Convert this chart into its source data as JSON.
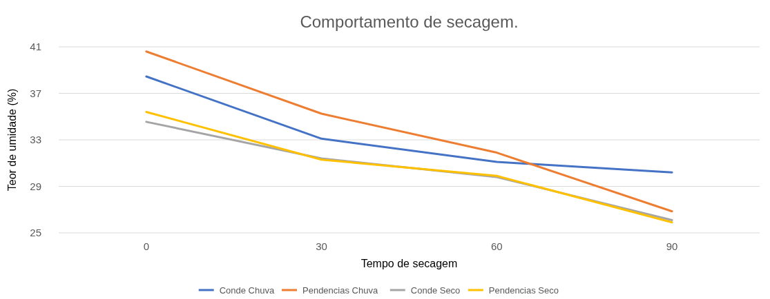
{
  "chart_data": {
    "type": "line",
    "title": "Comportamento de secagem.",
    "xlabel": "Tempo de secagem",
    "ylabel": "Teor de umidade (%)",
    "categories": [
      "0",
      "30",
      "60",
      "90"
    ],
    "series": [
      {
        "name": "Conde Chuva",
        "color": "#4472c4",
        "values": [
          38.45,
          33.1,
          31.1,
          30.2
        ]
      },
      {
        "name": "Pendencias Chuva",
        "color": "#ed7d31",
        "values": [
          40.6,
          35.25,
          31.9,
          26.85
        ]
      },
      {
        "name": "Conde Seco",
        "color": "#a5a5a5",
        "values": [
          34.55,
          31.4,
          29.8,
          26.1
        ]
      },
      {
        "name": "Pendencias Seco",
        "color": "#ffc000",
        "values": [
          35.4,
          31.3,
          29.9,
          25.9
        ]
      }
    ],
    "ylim": [
      25,
      41
    ],
    "yticks": [
      25,
      29,
      33,
      37,
      41
    ],
    "grid": "y",
    "legend": "bottom",
    "marker": "none",
    "line_style": "solid"
  }
}
